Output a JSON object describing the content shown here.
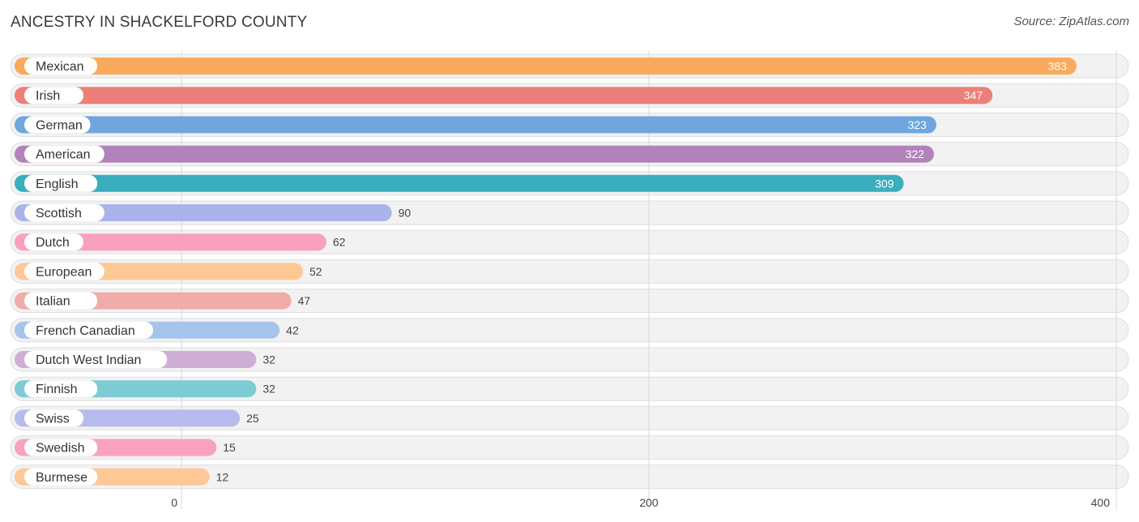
{
  "header": {
    "title": "ANCESTRY IN SHACKELFORD COUNTY",
    "source": "Source: ZipAtlas.com"
  },
  "chart_data": {
    "type": "bar",
    "orientation": "horizontal",
    "title": "ANCESTRY IN SHACKELFORD COUNTY",
    "xlabel": "",
    "ylabel": "",
    "xlim": [
      0,
      400
    ],
    "ticks": [
      {
        "value": 0,
        "label": "0"
      },
      {
        "value": 200,
        "label": "200"
      },
      {
        "value": 400,
        "label": "400"
      }
    ],
    "grid": true,
    "categories": [
      "Mexican",
      "Irish",
      "German",
      "American",
      "English",
      "Scottish",
      "Dutch",
      "European",
      "Italian",
      "French Canadian",
      "Dutch West Indian",
      "Finnish",
      "Swiss",
      "Swedish",
      "Burmese"
    ],
    "values": [
      383,
      347,
      323,
      322,
      309,
      90,
      62,
      52,
      47,
      42,
      32,
      32,
      25,
      15,
      12
    ],
    "value_labels": [
      "383",
      "347",
      "323",
      "322",
      "309",
      "90",
      "62",
      "52",
      "47",
      "42",
      "32",
      "32",
      "25",
      "15",
      "12"
    ],
    "colors": [
      "#f9aa5c",
      "#ec7f7a",
      "#6fa6dd",
      "#b283ba",
      "#3aaebd",
      "#aab4ea",
      "#f8a0bd",
      "#fdc894",
      "#f1aba8",
      "#a5c4ea",
      "#cfaed6",
      "#7dcbd4",
      "#b6bbee",
      "#f8a2bf",
      "#fdc796"
    ],
    "value_label_inside_color": "#ffffff",
    "value_label_outside_color": "#444444"
  }
}
